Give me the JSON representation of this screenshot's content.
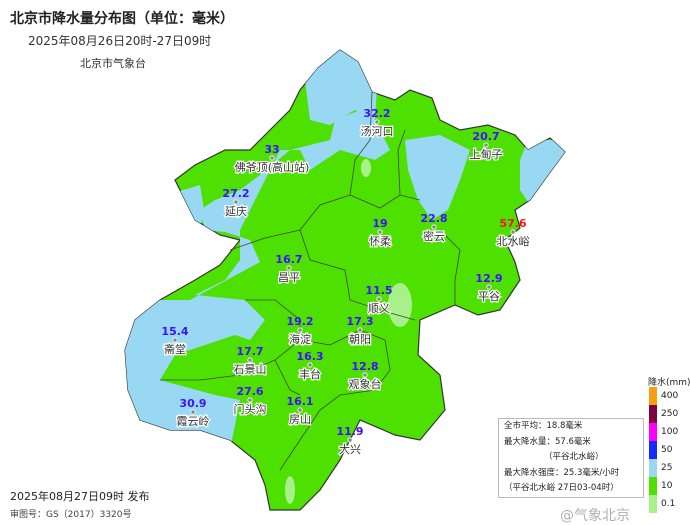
{
  "header": {
    "title": "北京市降水量分布图（单位：毫米）",
    "period": "2025年08月26日20时-27日09时",
    "organization": "北京市气象台"
  },
  "footer": {
    "issued": "2025年08月27日09时 发布",
    "map_number": "审图号：GS（2017）3320号"
  },
  "stations": [
    {
      "name": "佛爷顶(高山站)",
      "value": "33"
    },
    {
      "name": "汤河口",
      "value": "32.2"
    },
    {
      "name": "上甸子",
      "value": "20.7"
    },
    {
      "name": "延庆",
      "value": "27.2"
    },
    {
      "name": "怀柔",
      "value": "19"
    },
    {
      "name": "密云",
      "value": "22.8"
    },
    {
      "name": "北水峪",
      "value": "57.6",
      "is_max": true
    },
    {
      "name": "昌平",
      "value": "16.7"
    },
    {
      "name": "平谷",
      "value": "12.9"
    },
    {
      "name": "顺义",
      "value": "11.5"
    },
    {
      "name": "斋堂",
      "value": "15.4"
    },
    {
      "name": "海淀",
      "value": "19.2"
    },
    {
      "name": "石景山",
      "value": "17.7"
    },
    {
      "name": "朝阳",
      "value": "17.3"
    },
    {
      "name": "门头沟",
      "value": "27.6"
    },
    {
      "name": "丰台",
      "value": "16.3"
    },
    {
      "name": "观象台",
      "value": "12.8"
    },
    {
      "name": "房山",
      "value": "16.1"
    },
    {
      "name": "大兴",
      "value": "11.9"
    },
    {
      "name": "霞云岭",
      "value": "30.9"
    }
  ],
  "stats": {
    "city_avg": "全市平均：18.8毫米",
    "max_precip": "最大降水量：57.6毫米",
    "max_precip_site": "（平谷北水峪）",
    "max_intensity": "最大降水强度：25.3毫米/小时",
    "max_intensity_site": "（平谷北水峪    27日03-04时）"
  },
  "legend": {
    "title": "降水(mm)",
    "levels": [
      {
        "label": "400",
        "color": "#f5a011"
      },
      {
        "label": "250",
        "color": "#80003f"
      },
      {
        "label": "100",
        "color": "#ff00ff"
      },
      {
        "label": "50",
        "color": "#1528ff"
      },
      {
        "label": "25",
        "color": "#99d8f2"
      },
      {
        "label": "10",
        "color": "#4de000"
      },
      {
        "label": "0.1",
        "color": "#a8f08a"
      }
    ]
  },
  "watermark": "@气象北京"
}
